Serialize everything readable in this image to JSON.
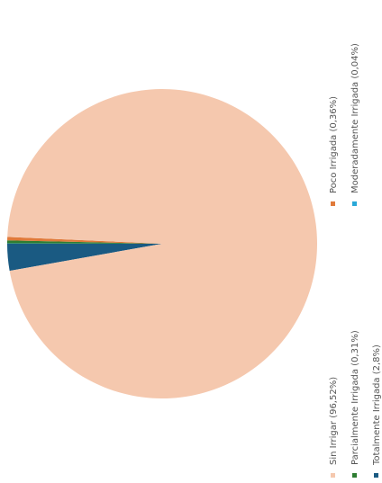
{
  "chart_data": {
    "type": "pie",
    "title": "",
    "slices": [
      {
        "label": "Sin Irrigar (96,52%)",
        "value": 96.52,
        "color": "#f5c8ae"
      },
      {
        "label": "Poco Irrigada (0,36%)",
        "value": 0.36,
        "color": "#e07a3a"
      },
      {
        "label": "Parcialmente Irrigada (0,31%)",
        "value": 0.31,
        "color": "#2e7d32"
      },
      {
        "label": "Moderadamente Irrigada (0,04%)",
        "value": 0.04,
        "color": "#29a8d8"
      },
      {
        "label": "Totalmente Irrigada (2,8%)",
        "value": 2.8,
        "color": "#1a5a82"
      }
    ],
    "legend_placement": "right"
  }
}
